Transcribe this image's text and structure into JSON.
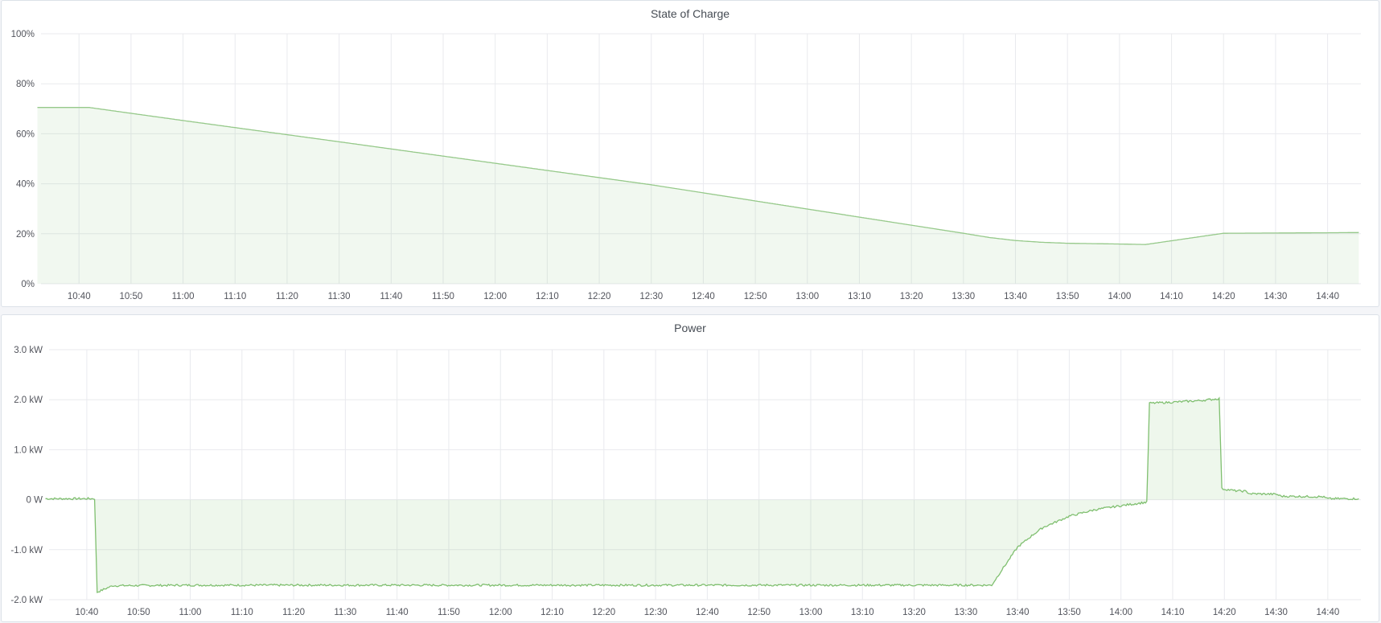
{
  "chart_data": [
    {
      "type": "area",
      "title": "State of Charge",
      "x_range": [
        "10:32",
        "14:46"
      ],
      "ylim": [
        0,
        100
      ],
      "y_ticks": [
        "0%",
        "20%",
        "40%",
        "60%",
        "80%",
        "100%"
      ],
      "y_tick_values": [
        0,
        20,
        40,
        60,
        80,
        100
      ],
      "x_ticks": [
        "10:40",
        "10:50",
        "11:00",
        "11:10",
        "11:20",
        "11:30",
        "11:40",
        "11:50",
        "12:00",
        "12:10",
        "12:20",
        "12:30",
        "12:40",
        "12:50",
        "13:00",
        "13:10",
        "13:20",
        "13:30",
        "13:40",
        "13:50",
        "14:00",
        "14:10",
        "14:20",
        "14:30",
        "14:40"
      ],
      "grid": true,
      "color": "#96c98a",
      "series": [
        {
          "x": [
            "10:32",
            "10:42",
            "11:00",
            "11:30",
            "12:00",
            "12:30",
            "13:00",
            "13:30",
            "13:35",
            "13:40",
            "13:45",
            "13:50",
            "14:00",
            "14:05",
            "14:10",
            "14:20",
            "14:30",
            "14:40",
            "14:46"
          ],
          "y": [
            70.5,
            70.5,
            65.3,
            56.8,
            48.2,
            39.6,
            29.9,
            20.2,
            18.5,
            17.3,
            16.6,
            16.2,
            15.9,
            15.7,
            17.2,
            20.2,
            20.3,
            20.4,
            20.5
          ]
        }
      ]
    },
    {
      "type": "area",
      "title": "Power",
      "x_range": [
        "10:32",
        "14:46"
      ],
      "ylim": [
        -2.0,
        3.0
      ],
      "y_ticks": [
        "-2.0 kW",
        "-1.0 kW",
        "0 W",
        "1.0 kW",
        "2.0 kW",
        "3.0 kW"
      ],
      "y_tick_values": [
        -2,
        -1,
        0,
        1,
        2,
        3
      ],
      "x_ticks": [
        "10:40",
        "10:50",
        "11:00",
        "11:10",
        "11:20",
        "11:30",
        "11:40",
        "11:50",
        "12:00",
        "12:10",
        "12:20",
        "12:30",
        "12:40",
        "12:50",
        "13:00",
        "13:10",
        "13:20",
        "13:30",
        "13:40",
        "13:50",
        "14:00",
        "14:10",
        "14:20",
        "14:30",
        "14:40"
      ],
      "grid": true,
      "color": "#7fbf6f",
      "unit": "kW",
      "series": [
        {
          "x": [
            "10:32",
            "10:41.5",
            "10:42",
            "10:45",
            "11:00",
            "12:00",
            "13:00",
            "13:35",
            "13:37",
            "13:40",
            "13:43",
            "13:45",
            "13:48",
            "13:50",
            "13:55",
            "14:00",
            "14:05",
            "14:05.5",
            "14:10",
            "14:15",
            "14:19",
            "14:19.5",
            "14:22",
            "14:24",
            "14:25",
            "14:30",
            "14:31",
            "14:39",
            "14:40",
            "14:46"
          ],
          "y": [
            0.02,
            0.02,
            -1.85,
            -1.72,
            -1.71,
            -1.71,
            -1.71,
            -1.71,
            -1.4,
            -0.95,
            -0.7,
            -0.55,
            -0.42,
            -0.33,
            -0.2,
            -0.12,
            -0.05,
            1.93,
            1.95,
            1.98,
            2.02,
            0.22,
            0.18,
            0.17,
            0.12,
            0.11,
            0.07,
            0.06,
            0.02,
            0.02
          ]
        }
      ]
    }
  ]
}
